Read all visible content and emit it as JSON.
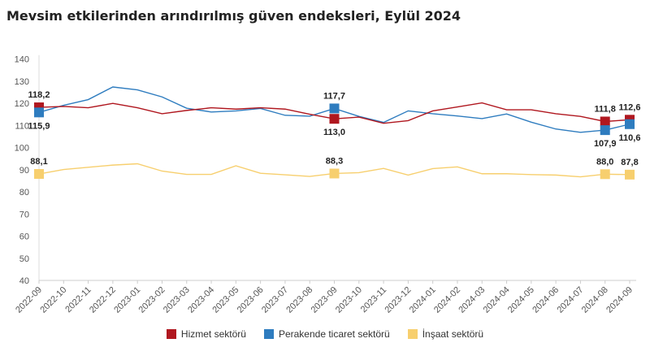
{
  "chart_data": {
    "type": "line",
    "title": "Mevsim etkilerinden arındırılmış güven endeksleri, Eylül 2024",
    "xlabel": "",
    "ylabel": "",
    "ylim": [
      40,
      140
    ],
    "yticks": [
      40,
      50,
      60,
      70,
      80,
      90,
      100,
      110,
      120,
      130,
      140
    ],
    "grid": false,
    "legend": "bottom",
    "categories": [
      "2022-09",
      "2022-10",
      "2022-11",
      "2022-12",
      "2023-01",
      "2023-02",
      "2023-03",
      "2023-04",
      "2023-05",
      "2023-06",
      "2023-07",
      "2023-08",
      "2023-09",
      "2023-10",
      "2023-11",
      "2023-12",
      "2024-01",
      "2024-02",
      "2024-03",
      "2024-04",
      "2024-05",
      "2024-06",
      "2024-07",
      "2024-08",
      "2024-09"
    ],
    "series": [
      {
        "name": "Hizmet sektörü",
        "color": "#b0171f",
        "values": [
          118.2,
          118.6,
          118.0,
          120.0,
          118.0,
          115.3,
          116.8,
          118.0,
          117.4,
          118.0,
          117.4,
          115.1,
          113.0,
          113.8,
          111.0,
          112.2,
          116.6,
          118.4,
          120.2,
          117.1,
          117.1,
          115.3,
          114.1,
          111.8,
          112.6
        ],
        "labels": [
          {
            "i": 0,
            "text": "118,2",
            "pos": "above"
          },
          {
            "i": 12,
            "text": "113,0",
            "pos": "below"
          },
          {
            "i": 23,
            "text": "111,8",
            "pos": "above"
          },
          {
            "i": 24,
            "text": "112,6",
            "pos": "above"
          }
        ]
      },
      {
        "name": "Perakende ticaret sektörü",
        "color": "#2e7cbf",
        "values": [
          115.9,
          119.1,
          121.7,
          127.4,
          126.1,
          122.9,
          117.8,
          116.1,
          116.6,
          117.7,
          114.6,
          114.2,
          117.7,
          114.1,
          111.4,
          116.6,
          115.3,
          114.3,
          113.1,
          115.2,
          111.5,
          108.4,
          106.9,
          107.9,
          110.6
        ],
        "labels": [
          {
            "i": 0,
            "text": "115,9",
            "pos": "below"
          },
          {
            "i": 12,
            "text": "117,7",
            "pos": "above"
          },
          {
            "i": 23,
            "text": "107,9",
            "pos": "below"
          },
          {
            "i": 24,
            "text": "110,6",
            "pos": "below"
          }
        ]
      },
      {
        "name": "İnşaat sektörü",
        "color": "#f7cf6e",
        "values": [
          88.1,
          90.1,
          91.1,
          92.1,
          92.7,
          89.4,
          87.9,
          87.9,
          91.8,
          88.4,
          87.7,
          87.0,
          88.3,
          88.7,
          90.6,
          87.6,
          90.5,
          91.3,
          88.2,
          88.2,
          87.8,
          87.6,
          86.8,
          88.0,
          87.8
        ],
        "labels": [
          {
            "i": 0,
            "text": "88,1",
            "pos": "above"
          },
          {
            "i": 12,
            "text": "88,3",
            "pos": "above"
          },
          {
            "i": 23,
            "text": "88,0",
            "pos": "above"
          },
          {
            "i": 24,
            "text": "87,8",
            "pos": "above"
          }
        ]
      }
    ],
    "markers_at": [
      0,
      12,
      23,
      24
    ]
  }
}
